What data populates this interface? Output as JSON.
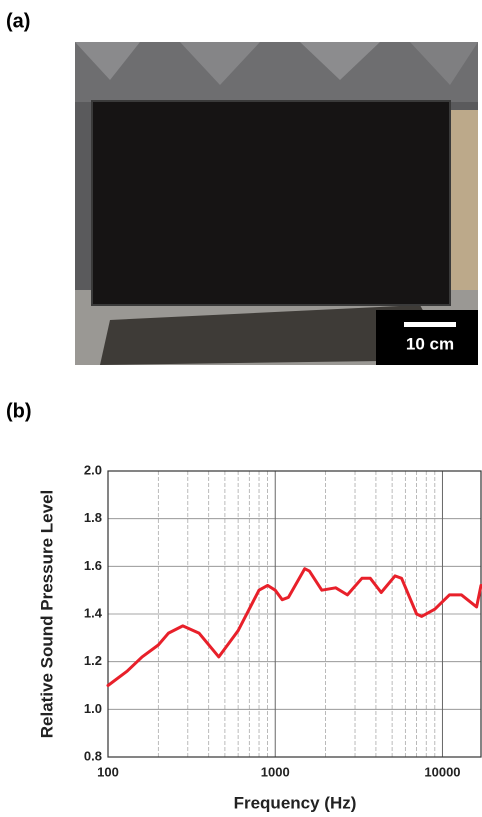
{
  "figure": {
    "panel_a_label": "(a)",
    "scale_bar_label": "10 cm",
    "panel_b_label": "(b)"
  },
  "chart_data": {
    "type": "line",
    "ylabel": "Relative Sound Pressure Level",
    "xlabel": "Frequency (Hz)",
    "xscale": "log",
    "xlim": [
      100,
      17000
    ],
    "ylim": [
      0.8,
      2.0
    ],
    "xticks": [
      100,
      1000,
      10000
    ],
    "x_minor_ticks": [
      200,
      300,
      400,
      500,
      600,
      700,
      800,
      900,
      2000,
      3000,
      4000,
      5000,
      6000,
      7000,
      8000,
      9000
    ],
    "yticks": [
      {
        "value": 0.8,
        "label": "0.8"
      },
      {
        "value": 1.0,
        "label": "1.0"
      },
      {
        "value": 1.2,
        "label": "1.2"
      },
      {
        "value": 1.4,
        "label": "1.4"
      },
      {
        "value": 1.6,
        "label": "1.6"
      },
      {
        "value": 1.8,
        "label": "1.8"
      },
      {
        "value": 2.0,
        "label": "2.0"
      }
    ],
    "grid": true,
    "series": [
      {
        "color": "#e8202a",
        "x": [
          100,
          130,
          160,
          200,
          230,
          280,
          350,
          460,
          600,
          800,
          900,
          1000,
          1100,
          1200,
          1500,
          1600,
          1900,
          2300,
          2700,
          3300,
          3700,
          4300,
          5200,
          5700,
          7000,
          7500,
          9000,
          11000,
          13000,
          16000,
          17000
        ],
        "values": [
          1.1,
          1.16,
          1.22,
          1.27,
          1.32,
          1.35,
          1.32,
          1.22,
          1.33,
          1.5,
          1.52,
          1.5,
          1.46,
          1.47,
          1.59,
          1.58,
          1.5,
          1.51,
          1.48,
          1.55,
          1.55,
          1.49,
          1.56,
          1.55,
          1.4,
          1.39,
          1.42,
          1.48,
          1.48,
          1.43,
          1.52
        ]
      }
    ]
  }
}
